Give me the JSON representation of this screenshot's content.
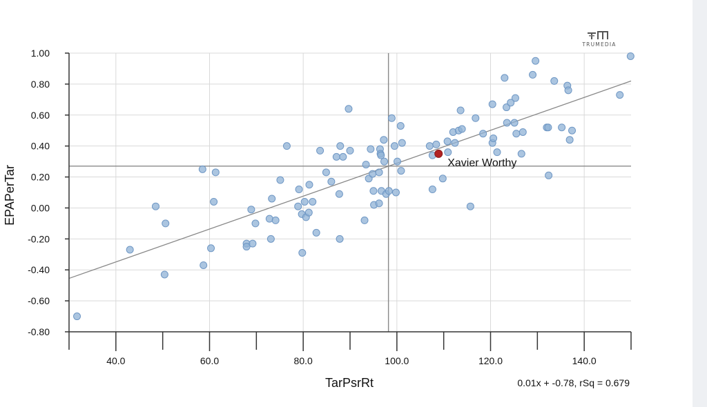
{
  "brand": {
    "name": "TRUMEDIA",
    "logo_icon": "trumedia-logo-icon"
  },
  "colors": {
    "point": "#8fb1d6",
    "point_stroke": "#6f97c4",
    "highlight": "#b22222",
    "trend": "#888888",
    "grid": "#d9d9d9",
    "axis": "#333333",
    "mean": "#888888"
  },
  "chart_data": {
    "type": "scatter",
    "xlabel": "TarPsrRt",
    "ylabel": "EPAPerTar",
    "xlim": [
      30,
      150
    ],
    "ylim": [
      -0.8,
      1.0
    ],
    "xticks": [
      40,
      60,
      80,
      100,
      120,
      140
    ],
    "xtick_labels": [
      "40.0",
      "60.0",
      "80.0",
      "100.0",
      "120.0",
      "140.0"
    ],
    "yticks": [
      1.0,
      0.8,
      0.6,
      0.4,
      0.2,
      0.0,
      -0.2,
      -0.4,
      -0.6,
      -0.8
    ],
    "ytick_labels": [
      "1.00",
      "0.80",
      "0.60",
      "0.40",
      "0.20",
      "0.00",
      "-0.20",
      "-0.40",
      "-0.60",
      "-0.80"
    ],
    "grid": true,
    "mean_x": 98.2,
    "mean_y": 0.27,
    "trendline": {
      "x": [
        30,
        150
      ],
      "y": [
        -0.455,
        0.82
      ]
    },
    "trend_label": "0.01x + -0.78, rSq = 0.679",
    "highlight": {
      "name": "Xavier Worthy",
      "x": 108.9,
      "y": 0.35
    },
    "points": [
      [
        31.7,
        -0.7
      ],
      [
        43.0,
        -0.27
      ],
      [
        48.5,
        0.01
      ],
      [
        50.4,
        -0.43
      ],
      [
        50.6,
        -0.1
      ],
      [
        58.5,
        0.25
      ],
      [
        58.7,
        -0.37
      ],
      [
        60.3,
        -0.26
      ],
      [
        60.9,
        0.04
      ],
      [
        61.3,
        0.23
      ],
      [
        67.9,
        -0.23
      ],
      [
        67.9,
        -0.25
      ],
      [
        68.9,
        -0.01
      ],
      [
        69.2,
        -0.23
      ],
      [
        69.8,
        -0.1
      ],
      [
        72.8,
        -0.07
      ],
      [
        73.1,
        -0.2
      ],
      [
        73.3,
        0.06
      ],
      [
        74.1,
        -0.08
      ],
      [
        75.1,
        0.18
      ],
      [
        76.5,
        0.4
      ],
      [
        78.9,
        0.01
      ],
      [
        79.1,
        0.12
      ],
      [
        79.7,
        -0.04
      ],
      [
        79.8,
        -0.29
      ],
      [
        80.3,
        0.04
      ],
      [
        80.6,
        -0.06
      ],
      [
        81.2,
        -0.03
      ],
      [
        81.3,
        0.15
      ],
      [
        82.0,
        0.04
      ],
      [
        82.8,
        -0.16
      ],
      [
        83.6,
        0.37
      ],
      [
        84.9,
        0.23
      ],
      [
        86.0,
        0.17
      ],
      [
        87.1,
        0.33
      ],
      [
        87.7,
        0.09
      ],
      [
        87.8,
        -0.2
      ],
      [
        87.9,
        0.4
      ],
      [
        88.5,
        0.33
      ],
      [
        89.7,
        0.64
      ],
      [
        90.0,
        0.37
      ],
      [
        93.1,
        -0.08
      ],
      [
        93.4,
        0.28
      ],
      [
        94.0,
        0.19
      ],
      [
        94.4,
        0.38
      ],
      [
        94.8,
        0.22
      ],
      [
        95.0,
        0.11
      ],
      [
        95.1,
        0.02
      ],
      [
        96.2,
        0.23
      ],
      [
        96.2,
        0.03
      ],
      [
        96.4,
        0.38
      ],
      [
        96.5,
        0.35
      ],
      [
        96.6,
        0.34
      ],
      [
        96.7,
        0.11
      ],
      [
        97.2,
        0.44
      ],
      [
        97.3,
        0.3
      ],
      [
        97.7,
        0.09
      ],
      [
        98.3,
        0.11
      ],
      [
        98.9,
        0.58
      ],
      [
        99.5,
        0.4
      ],
      [
        99.8,
        0.1
      ],
      [
        100.1,
        0.3
      ],
      [
        100.8,
        0.53
      ],
      [
        100.9,
        0.24
      ],
      [
        101.1,
        0.42
      ],
      [
        107.0,
        0.4
      ],
      [
        107.6,
        0.12
      ],
      [
        107.6,
        0.34
      ],
      [
        108.4,
        0.41
      ],
      [
        109.8,
        0.19
      ],
      [
        110.8,
        0.43
      ],
      [
        110.9,
        0.36
      ],
      [
        112.0,
        0.49
      ],
      [
        112.4,
        0.42
      ],
      [
        113.2,
        0.5
      ],
      [
        113.6,
        0.63
      ],
      [
        113.9,
        0.51
      ],
      [
        115.7,
        0.01
      ],
      [
        116.8,
        0.58
      ],
      [
        118.4,
        0.48
      ],
      [
        120.4,
        0.67
      ],
      [
        120.4,
        0.42
      ],
      [
        120.6,
        0.45
      ],
      [
        121.4,
        0.36
      ],
      [
        123.0,
        0.84
      ],
      [
        123.4,
        0.65
      ],
      [
        123.5,
        0.55
      ],
      [
        124.3,
        0.68
      ],
      [
        125.1,
        0.55
      ],
      [
        125.3,
        0.71
      ],
      [
        125.5,
        0.48
      ],
      [
        126.6,
        0.35
      ],
      [
        126.9,
        0.49
      ],
      [
        129.0,
        0.86
      ],
      [
        129.6,
        0.95
      ],
      [
        132.0,
        0.52
      ],
      [
        132.3,
        0.52
      ],
      [
        132.4,
        0.21
      ],
      [
        133.6,
        0.82
      ],
      [
        135.2,
        0.52
      ],
      [
        136.4,
        0.79
      ],
      [
        136.6,
        0.76
      ],
      [
        136.9,
        0.44
      ],
      [
        137.4,
        0.5
      ],
      [
        147.6,
        0.73
      ],
      [
        149.9,
        0.98
      ]
    ]
  }
}
